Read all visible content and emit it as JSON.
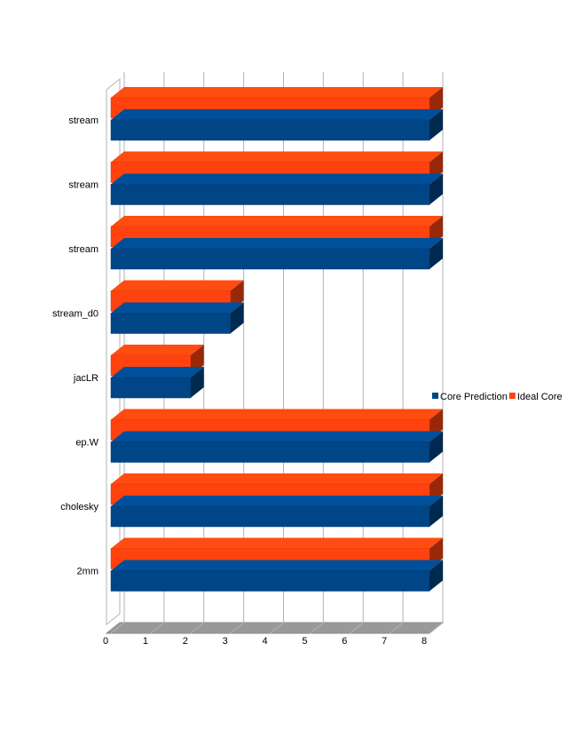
{
  "chart_data": {
    "type": "bar",
    "orientation": "horizontal",
    "three_d": true,
    "title": "",
    "xlabel": "",
    "ylabel": "",
    "categories": [
      "stream",
      "stream",
      "stream",
      "stream_d0",
      "jacLR",
      "ep.W",
      "cholesky",
      "2mm"
    ],
    "series": [
      {
        "name": "Core Prediction",
        "color": "#004586",
        "values": [
          8,
          8,
          8,
          3,
          2,
          8,
          8,
          8
        ]
      },
      {
        "name": "Ideal Core",
        "color": "#ff420e",
        "values": [
          8,
          8,
          8,
          3,
          2,
          8,
          8,
          8
        ]
      }
    ],
    "xlim": [
      0,
      8
    ],
    "xticks": [
      "0",
      "1",
      "2",
      "3",
      "4",
      "5",
      "6",
      "7",
      "8"
    ],
    "grid": true,
    "legend_position": "right"
  }
}
